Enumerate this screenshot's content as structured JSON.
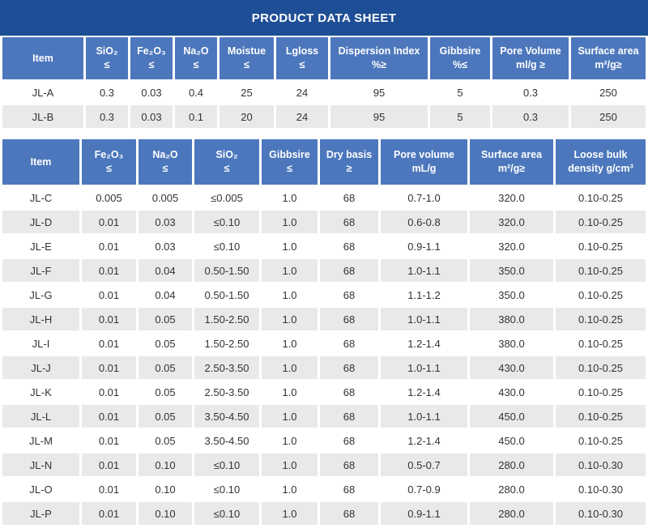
{
  "title_bar": {
    "title": "PRODUCT DATA SHEET"
  },
  "colors": {
    "title_bg": "#1E4E96",
    "header_bg": "#4C77BC",
    "row_alt_bg": "#E9E9E9",
    "row_bg": "#FFFFFF",
    "data_text": "#333333",
    "header_text": "#FFFFFF"
  },
  "table1": {
    "headers": [
      {
        "line1": "Item",
        "line2": ""
      },
      {
        "line1": "SiO₂",
        "line2": "≤"
      },
      {
        "line1": "Fe₂O₃",
        "line2": "≤"
      },
      {
        "line1": "Na₂O",
        "line2": "≤"
      },
      {
        "line1": "Moistue",
        "line2": "≤"
      },
      {
        "line1": "Lgloss",
        "line2": "≤"
      },
      {
        "line1": "Dispersion Index",
        "line2": "%≥"
      },
      {
        "line1": "Gibbsire",
        "line2": "%≤"
      },
      {
        "line1": "Pore Volume",
        "line2": "ml/g ≥"
      },
      {
        "line1": "Surface area",
        "line2": "m²/g≥"
      }
    ],
    "rows": [
      [
        "JL-A",
        "0.3",
        "0.03",
        "0.4",
        "25",
        "24",
        "95",
        "5",
        "0.3",
        "250"
      ],
      [
        "JL-B",
        "0.3",
        "0.03",
        "0.1",
        "20",
        "24",
        "95",
        "5",
        "0.3",
        "250"
      ]
    ]
  },
  "table2": {
    "headers": [
      {
        "line1": "Item",
        "line2": ""
      },
      {
        "line1": "Fe₂O₃",
        "line2": "≤"
      },
      {
        "line1": "Na₂O",
        "line2": "≤"
      },
      {
        "line1": "SiO₂",
        "line2": "≤"
      },
      {
        "line1": "Gibbsire",
        "line2": "≤"
      },
      {
        "line1": "Dry basis",
        "line2": "≥"
      },
      {
        "line1": "Pore volume",
        "line2": "mL/g"
      },
      {
        "line1": "Surface area",
        "line2": "m²/g≥"
      },
      {
        "line1": "Loose bulk",
        "line2": "density g/cm³"
      }
    ],
    "rows": [
      [
        "JL-C",
        "0.005",
        "0.005",
        "≤0.005",
        "1.0",
        "68",
        "0.7-1.0",
        "320.0",
        "0.10-0.25"
      ],
      [
        "JL-D",
        "0.01",
        "0.03",
        "≤0.10",
        "1.0",
        "68",
        "0.6-0.8",
        "320.0",
        "0.10-0.25"
      ],
      [
        "JL-E",
        "0.01",
        "0.03",
        "≤0.10",
        "1.0",
        "68",
        "0.9-1.1",
        "320.0",
        "0.10-0.25"
      ],
      [
        "JL-F",
        "0.01",
        "0.04",
        "0.50-1.50",
        "1.0",
        "68",
        "1.0-1.1",
        "350.0",
        "0.10-0.25"
      ],
      [
        "JL-G",
        "0.01",
        "0.04",
        "0.50-1.50",
        "1.0",
        "68",
        "1.1-1.2",
        "350.0",
        "0.10-0.25"
      ],
      [
        "JL-H",
        "0.01",
        "0.05",
        "1.50-2.50",
        "1.0",
        "68",
        "1.0-1.1",
        "380.0",
        "0.10-0.25"
      ],
      [
        "JL-I",
        "0.01",
        "0.05",
        "1.50-2.50",
        "1.0",
        "68",
        "1.2-1.4",
        "380.0",
        "0.10-0.25"
      ],
      [
        "JL-J",
        "0.01",
        "0.05",
        "2.50-3.50",
        "1.0",
        "68",
        "1.0-1.1",
        "430.0",
        "0.10-0.25"
      ],
      [
        "JL-K",
        "0.01",
        "0.05",
        "2.50-3.50",
        "1.0",
        "68",
        "1.2-1.4",
        "430.0",
        "0.10-0.25"
      ],
      [
        "JL-L",
        "0.01",
        "0.05",
        "3.50-4.50",
        "1.0",
        "68",
        "1.0-1.1",
        "450.0",
        "0.10-0.25"
      ],
      [
        "JL-M",
        "0.01",
        "0.05",
        "3.50-4.50",
        "1.0",
        "68",
        "1.2-1.4",
        "450.0",
        "0.10-0.25"
      ],
      [
        "JL-N",
        "0.01",
        "0.10",
        "≤0.10",
        "1.0",
        "68",
        "0.5-0.7",
        "280.0",
        "0.10-0.30"
      ],
      [
        "JL-O",
        "0.01",
        "0.10",
        "≤0.10",
        "1.0",
        "68",
        "0.7-0.9",
        "280.0",
        "0.10-0.30"
      ],
      [
        "JL-P",
        "0.01",
        "0.10",
        "≤0.10",
        "1.0",
        "68",
        "0.9-1.1",
        "280.0",
        "0.10-0.30"
      ]
    ]
  }
}
